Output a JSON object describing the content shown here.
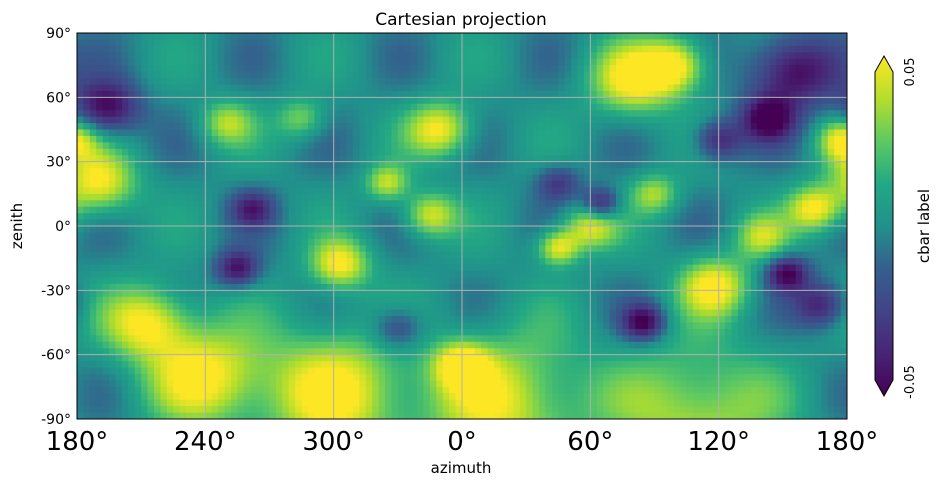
{
  "chart_data": {
    "type": "heatmap",
    "title": "Cartesian projection",
    "xlabel": "azimuth",
    "ylabel": "zenith",
    "x_ticks": [
      "180°",
      "240°",
      "300°",
      "0°",
      "60°",
      "120°",
      "180°"
    ],
    "y_ticks": [
      "90°",
      "60°",
      "30°",
      "0°",
      "-30°",
      "-60°",
      "-90°"
    ],
    "xlim": [
      180,
      540
    ],
    "ylim": [
      -90,
      90
    ],
    "grid": true,
    "colormap": "viridis",
    "colorbar": {
      "label": "cbar label",
      "min_label": "-0.05",
      "max_label": "0.05",
      "vmin": -0.05,
      "vmax": 0.05,
      "extend": "both"
    },
    "field_features": [
      {
        "az": 194,
        "zen": 55,
        "r": 12,
        "v": -0.05
      },
      {
        "az": 190,
        "zen": 20,
        "r": 14,
        "v": 0.05
      },
      {
        "az": 255,
        "zen": -20,
        "r": 8,
        "v": -0.045
      },
      {
        "az": 262,
        "zen": 8,
        "r": 8,
        "v": -0.035
      },
      {
        "az": 213,
        "zen": -45,
        "r": 16,
        "v": 0.05
      },
      {
        "az": 250,
        "zen": 48,
        "r": 10,
        "v": 0.035
      },
      {
        "az": 285,
        "zen": 50,
        "r": 9,
        "v": 0.03
      },
      {
        "az": 303,
        "zen": -18,
        "r": 11,
        "v": 0.05
      },
      {
        "az": 325,
        "zen": 20,
        "r": 8,
        "v": 0.04
      },
      {
        "az": 350,
        "zen": 45,
        "r": 12,
        "v": 0.05
      },
      {
        "az": 345,
        "zen": 5,
        "r": 10,
        "v": 0.045
      },
      {
        "az": 330,
        "zen": -48,
        "r": 10,
        "v": -0.035
      },
      {
        "az": 360,
        "zen": -65,
        "r": 10,
        "v": 0.045
      },
      {
        "az": 405,
        "zen": -10,
        "r": 8,
        "v": 0.05
      },
      {
        "az": 420,
        "zen": 0,
        "r": 10,
        "v": 0.045
      },
      {
        "az": 405,
        "zen": 20,
        "r": 8,
        "v": -0.03
      },
      {
        "az": 425,
        "zen": 10,
        "r": 7,
        "v": -0.045
      },
      {
        "az": 440,
        "zen": 68,
        "r": 16,
        "v": 0.05
      },
      {
        "az": 460,
        "zen": 75,
        "r": 12,
        "v": 0.05
      },
      {
        "az": 450,
        "zen": 15,
        "r": 9,
        "v": 0.035
      },
      {
        "az": 445,
        "zen": -45,
        "r": 8,
        "v": -0.05
      },
      {
        "az": 478,
        "zen": -28,
        "r": 13,
        "v": 0.05
      },
      {
        "az": 480,
        "zen": 40,
        "r": 9,
        "v": -0.04
      },
      {
        "az": 503,
        "zen": 50,
        "r": 10,
        "v": -0.05
      },
      {
        "az": 515,
        "zen": 72,
        "r": 16,
        "v": -0.05
      },
      {
        "az": 512,
        "zen": -22,
        "r": 8,
        "v": -0.05
      },
      {
        "az": 528,
        "zen": -37,
        "r": 10,
        "v": -0.04
      },
      {
        "az": 525,
        "zen": 8,
        "r": 10,
        "v": 0.05
      },
      {
        "az": 538,
        "zen": 40,
        "r": 9,
        "v": 0.045
      },
      {
        "az": 500,
        "zen": -5,
        "r": 10,
        "v": 0.035
      },
      {
        "az": 240,
        "zen": -70,
        "r": 22,
        "v": 0.05
      },
      {
        "az": 300,
        "zen": -78,
        "r": 28,
        "v": 0.05
      },
      {
        "az": 380,
        "zen": -82,
        "r": 30,
        "v": 0.045
      },
      {
        "az": 470,
        "zen": -88,
        "r": 30,
        "v": 0.04
      }
    ]
  }
}
